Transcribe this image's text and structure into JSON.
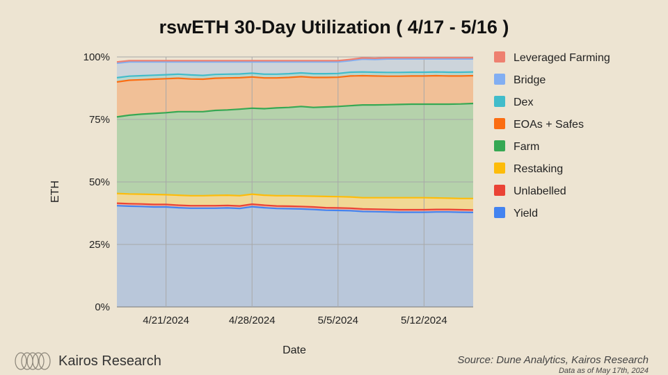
{
  "title": "rswETH 30-Day Utilization ( 4/17 - 5/16 )",
  "brand": {
    "name": "Kairos Research"
  },
  "source": {
    "text": "Source: Dune Analytics, Kairos Research",
    "date": "Data as of May 17th, 2024"
  },
  "colors": {
    "background": "#ede4d2",
    "Leveraged Farming": "#ee8070",
    "Bridge": "#82aef2",
    "Dex": "#41bcca",
    "EOAs + Safes": "#fb6d12",
    "Farm": "#36a853",
    "Restaking": "#fdbc0a",
    "Unlabelled": "#ea4335",
    "Yield": "#4383f0"
  },
  "chart_data": {
    "type": "area",
    "stacked": true,
    "title": "rswETH 30-Day Utilization ( 4/17 - 5/16 )",
    "xlabel": "Date",
    "ylabel": "ETH",
    "x_tick_labels": [
      "4/21/2024",
      "4/28/2024",
      "5/5/2024",
      "5/12/2024"
    ],
    "y_tick_labels": [
      "0%",
      "25%",
      "50%",
      "75%",
      "100%"
    ],
    "ylim": [
      0,
      100
    ],
    "grid": true,
    "legend_position": "right",
    "x": [
      "4/17/2024",
      "4/18/2024",
      "4/19/2024",
      "4/20/2024",
      "4/21/2024",
      "4/22/2024",
      "4/23/2024",
      "4/24/2024",
      "4/25/2024",
      "4/26/2024",
      "4/27/2024",
      "4/28/2024",
      "4/29/2024",
      "4/30/2024",
      "5/1/2024",
      "5/2/2024",
      "5/3/2024",
      "5/4/2024",
      "5/5/2024",
      "5/6/2024",
      "5/7/2024",
      "5/8/2024",
      "5/9/2024",
      "5/10/2024",
      "5/11/2024",
      "5/12/2024",
      "5/13/2024",
      "5/14/2024",
      "5/15/2024",
      "5/16/2024"
    ],
    "series": [
      {
        "name": "Yield",
        "values": [
          40.5,
          40.3,
          40.2,
          40.0,
          40.0,
          39.7,
          39.5,
          39.5,
          39.5,
          39.6,
          39.4,
          40.1,
          39.7,
          39.4,
          39.3,
          39.2,
          39.0,
          38.7,
          38.6,
          38.5,
          38.2,
          38.1,
          38.0,
          37.9,
          37.9,
          37.9,
          38.0,
          38.0,
          37.9,
          37.8
        ]
      },
      {
        "name": "Unlabelled",
        "values": [
          1.0,
          1.0,
          1.0,
          1.0,
          1.0,
          1.0,
          1.0,
          1.0,
          1.0,
          1.0,
          1.0,
          1.0,
          1.0,
          1.0,
          1.0,
          1.0,
          1.0,
          1.0,
          1.0,
          1.0,
          1.0,
          1.0,
          1.0,
          1.0,
          1.0,
          1.0,
          1.0,
          1.0,
          1.0,
          1.0
        ]
      },
      {
        "name": "Restaking",
        "values": [
          3.9,
          3.9,
          3.9,
          4.0,
          3.9,
          4.0,
          4.0,
          4.0,
          4.1,
          4.1,
          4.1,
          4.0,
          4.0,
          4.1,
          4.2,
          4.2,
          4.3,
          4.5,
          4.5,
          4.5,
          4.5,
          4.6,
          4.7,
          4.8,
          4.8,
          4.8,
          4.6,
          4.5,
          4.5,
          4.6
        ]
      },
      {
        "name": "Farm",
        "values": [
          30.6,
          31.5,
          32.0,
          32.4,
          32.8,
          33.4,
          33.6,
          33.6,
          34.0,
          34.1,
          34.6,
          34.4,
          34.6,
          35.1,
          35.3,
          35.8,
          35.5,
          35.8,
          36.1,
          36.5,
          37.1,
          37.1,
          37.2,
          37.3,
          37.4,
          37.4,
          37.5,
          37.6,
          37.8,
          38.0
        ]
      },
      {
        "name": "EOAs + Safes",
        "values": [
          14.0,
          14.0,
          13.8,
          13.7,
          13.6,
          13.4,
          13.1,
          13.0,
          12.9,
          12.8,
          12.6,
          12.5,
          12.3,
          12.0,
          12.0,
          11.9,
          12.0,
          11.8,
          11.7,
          11.9,
          11.7,
          11.6,
          11.4,
          11.3,
          11.3,
          11.3,
          11.4,
          11.3,
          11.2,
          11.1
        ]
      },
      {
        "name": "Dex",
        "values": [
          1.7,
          1.6,
          1.6,
          1.6,
          1.6,
          1.6,
          1.6,
          1.5,
          1.5,
          1.5,
          1.5,
          1.5,
          1.5,
          1.5,
          1.5,
          1.5,
          1.5,
          1.5,
          1.5,
          1.5,
          1.5,
          1.5,
          1.5,
          1.5,
          1.5,
          1.5,
          1.5,
          1.5,
          1.5,
          1.5
        ]
      },
      {
        "name": "Bridge",
        "values": [
          5.8,
          5.7,
          5.5,
          5.3,
          5.1,
          4.9,
          5.2,
          5.4,
          5.0,
          4.9,
          4.8,
          4.5,
          4.9,
          4.9,
          4.7,
          4.4,
          4.7,
          4.7,
          4.6,
          4.6,
          5.1,
          5.1,
          5.4,
          5.4,
          5.3,
          5.3,
          5.2,
          5.3,
          5.3,
          5.2
        ]
      },
      {
        "name": "Leveraged Farming",
        "values": [
          0.5,
          0.5,
          0.5,
          0.5,
          0.5,
          0.5,
          0.5,
          0.5,
          0.5,
          0.5,
          0.5,
          0.5,
          0.5,
          0.5,
          0.5,
          0.5,
          0.5,
          0.5,
          0.5,
          0.5,
          0.5,
          0.5,
          0.5,
          0.5,
          0.5,
          0.5,
          0.5,
          0.5,
          0.5,
          0.5
        ]
      }
    ],
    "legend_order": [
      "Leveraged Farming",
      "Bridge",
      "Dex",
      "EOAs + Safes",
      "Farm",
      "Restaking",
      "Unlabelled",
      "Yield"
    ]
  }
}
